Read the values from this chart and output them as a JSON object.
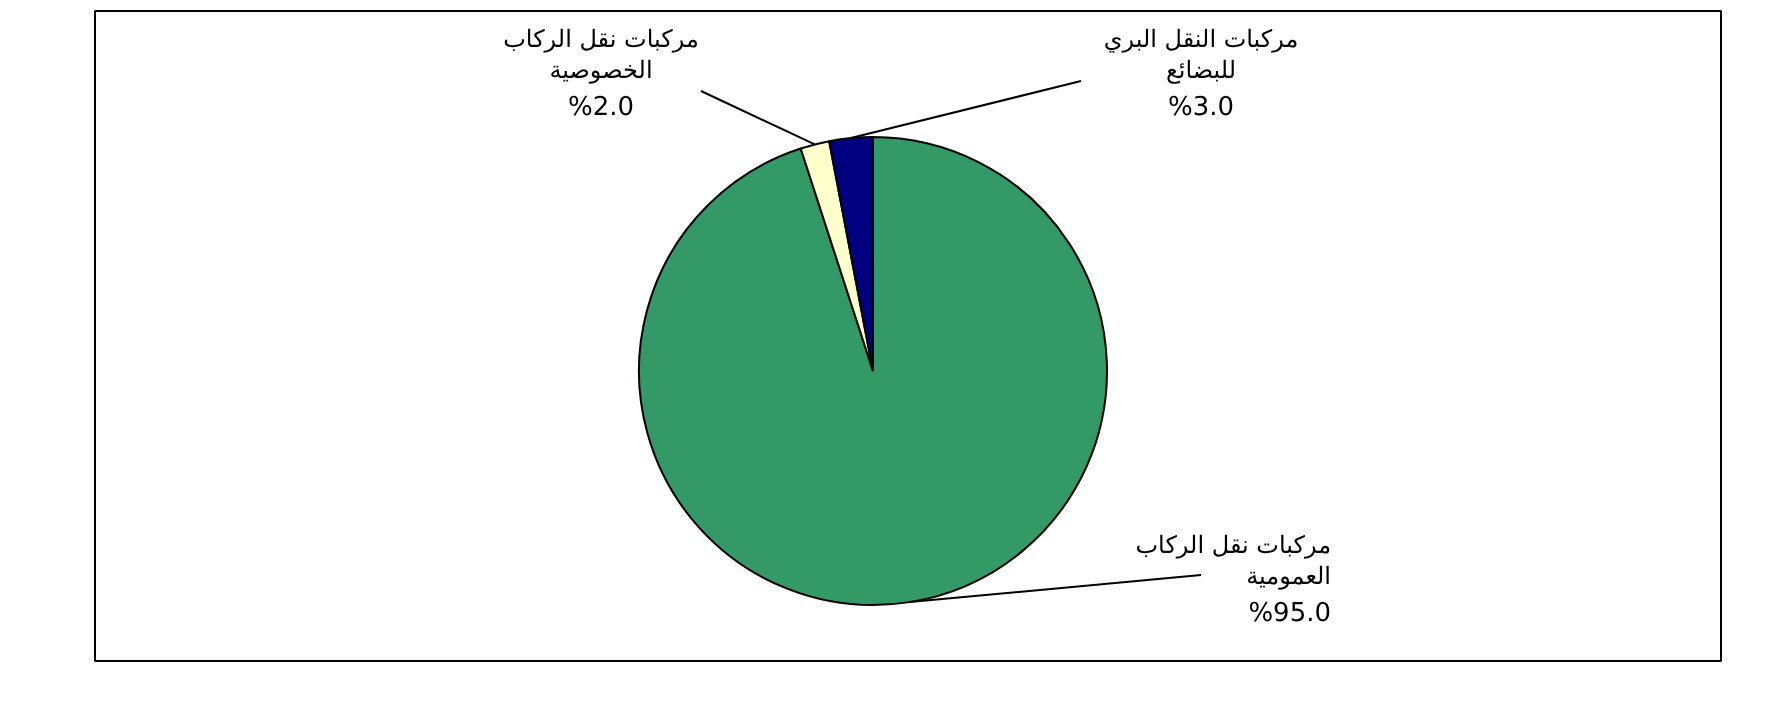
{
  "chart_data": {
    "type": "pie",
    "categories": [
      "مركبات نقل الركاب\nالعمومية",
      "مركبات نقل الركاب\nالخصوصية",
      "مركبات النقل البري\nللبضائع"
    ],
    "values": [
      95.0,
      2.0,
      3.0
    ],
    "colors": [
      "#339966",
      "#ffffcc",
      "#000080"
    ],
    "value_labels": [
      "%95.0",
      "%2.0",
      "%3.0"
    ]
  }
}
